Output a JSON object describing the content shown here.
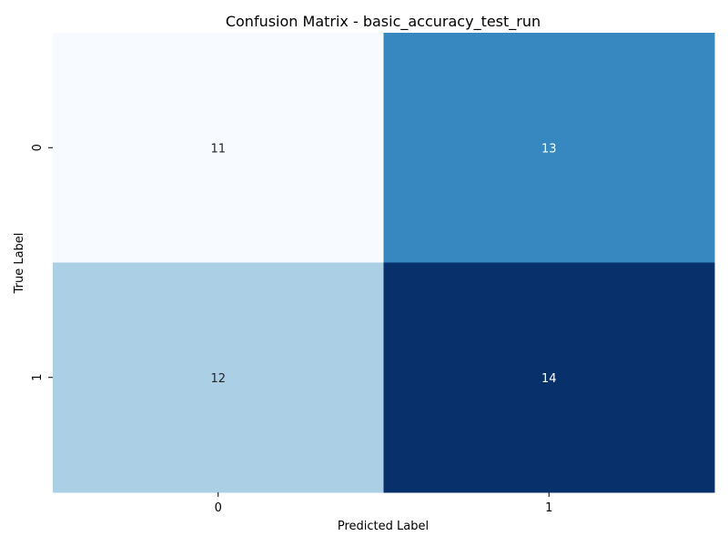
{
  "chart_data": {
    "type": "heatmap",
    "title": "Confusion Matrix - basic_accuracy_test_run",
    "xlabel": "Predicted Label",
    "ylabel": "True Label",
    "x_categories": [
      "0",
      "1"
    ],
    "y_categories": [
      "0",
      "1"
    ],
    "values": [
      [
        11,
        13
      ],
      [
        12,
        14
      ]
    ],
    "colormap": "Blues",
    "grid": false,
    "colors": {
      "min": "#f7fbff",
      "low_mid": "#abcfe5",
      "high_mid": "#3787c0",
      "max": "#08306b",
      "text_dark": "#262626",
      "text_light": "#ffffff"
    }
  }
}
